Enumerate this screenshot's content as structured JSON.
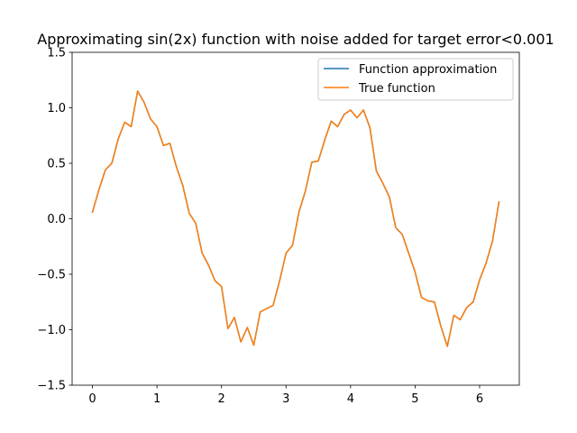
{
  "chart_data": {
    "type": "line",
    "title": "Approximating sin(2x) function with noise added for target error<0.001",
    "xlabel": "",
    "ylabel": "",
    "xlim": [
      -0.315,
      6.615
    ],
    "ylim": [
      -1.5,
      1.5
    ],
    "xticks": [
      0,
      1,
      2,
      3,
      4,
      5,
      6
    ],
    "yticks": [
      -1.5,
      -1.0,
      -0.5,
      0.0,
      0.5,
      1.0,
      1.5
    ],
    "xtick_labels": [
      "0",
      "1",
      "2",
      "3",
      "4",
      "5",
      "6"
    ],
    "ytick_labels": [
      "−1.5",
      "−1.0",
      "−0.5",
      "0.0",
      "0.5",
      "1.0",
      "1.5"
    ],
    "grid": false,
    "legend_position": "top-right",
    "x": [
      0.0,
      0.1,
      0.2,
      0.3,
      0.4,
      0.5,
      0.6,
      0.7,
      0.8,
      0.9,
      1.0,
      1.1,
      1.2,
      1.3,
      1.4,
      1.5,
      1.6,
      1.7,
      1.8,
      1.9,
      2.0,
      2.1,
      2.2,
      2.3,
      2.4,
      2.5,
      2.6,
      2.7,
      2.8,
      2.9,
      3.0,
      3.1,
      3.2,
      3.3,
      3.4,
      3.5,
      3.6,
      3.7,
      3.8,
      3.9,
      4.0,
      4.1,
      4.2,
      4.3,
      4.4,
      4.5,
      4.6,
      4.7,
      4.8,
      4.9,
      5.0,
      5.1,
      5.2,
      5.3,
      5.4,
      5.5,
      5.6,
      5.7,
      5.8,
      5.9,
      6.0,
      6.1,
      6.2,
      6.3
    ],
    "series": [
      {
        "name": "Function approximation",
        "color": "#1f77b4",
        "values": [
          0.06,
          0.26,
          0.44,
          0.5,
          0.72,
          0.87,
          0.83,
          1.15,
          1.05,
          0.9,
          0.83,
          0.66,
          0.68,
          0.47,
          0.3,
          0.05,
          -0.04,
          -0.31,
          -0.42,
          -0.56,
          -0.61,
          -0.99,
          -0.89,
          -1.11,
          -0.98,
          -1.14,
          -0.84,
          -0.81,
          -0.78,
          -0.56,
          -0.31,
          -0.24,
          0.06,
          0.25,
          0.51,
          0.52,
          0.71,
          0.88,
          0.83,
          0.94,
          0.98,
          0.91,
          0.98,
          0.82,
          0.43,
          0.32,
          0.2,
          -0.08,
          -0.14,
          -0.31,
          -0.48,
          -0.71,
          -0.74,
          -0.75,
          -0.97,
          -1.15,
          -0.87,
          -0.91,
          -0.8,
          -0.75,
          -0.55,
          -0.4,
          -0.2,
          0.15
        ]
      },
      {
        "name": "True function",
        "color": "#ff7f0e",
        "values": [
          0.06,
          0.26,
          0.44,
          0.5,
          0.72,
          0.87,
          0.83,
          1.15,
          1.05,
          0.9,
          0.83,
          0.66,
          0.68,
          0.47,
          0.3,
          0.05,
          -0.04,
          -0.31,
          -0.42,
          -0.56,
          -0.61,
          -0.99,
          -0.89,
          -1.11,
          -0.98,
          -1.14,
          -0.84,
          -0.81,
          -0.78,
          -0.56,
          -0.31,
          -0.24,
          0.06,
          0.25,
          0.51,
          0.52,
          0.71,
          0.88,
          0.83,
          0.94,
          0.98,
          0.91,
          0.98,
          0.82,
          0.43,
          0.32,
          0.2,
          -0.08,
          -0.14,
          -0.31,
          -0.48,
          -0.71,
          -0.74,
          -0.75,
          -0.97,
          -1.15,
          -0.87,
          -0.91,
          -0.8,
          -0.75,
          -0.55,
          -0.4,
          -0.2,
          0.15
        ]
      }
    ]
  }
}
